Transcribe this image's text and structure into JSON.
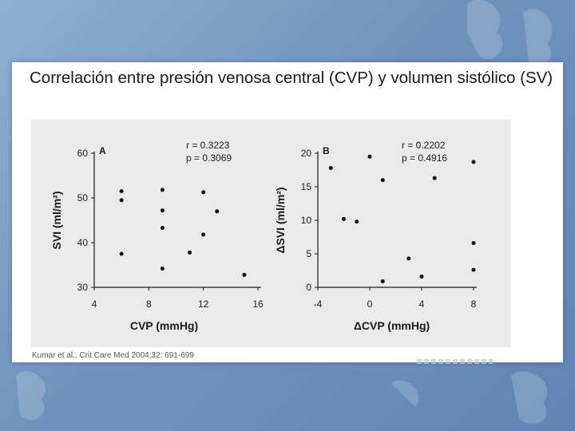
{
  "slide": {
    "title": "Correlación entre presión venosa central (CVP) y volumen sistólico (SV)",
    "citation": "Kumar et al., Crit Care Med 2004;32: 691-699"
  },
  "colors": {
    "background": "#6f93bd",
    "panel": "#eaeaea",
    "points": "#111111"
  },
  "chart_data": [
    {
      "type": "scatter",
      "panel": "A",
      "xlabel": "CVP (mmHg)",
      "ylabel": "SVI (ml/m²)",
      "xlim": [
        4,
        16
      ],
      "ylim": [
        30,
        60
      ],
      "xticks": [
        4,
        8,
        12,
        16
      ],
      "yticks": [
        30,
        40,
        50,
        60
      ],
      "annotations": [
        "r = 0.3223",
        "p = 0.3069"
      ],
      "points": [
        [
          6,
          51.5
        ],
        [
          6,
          49.5
        ],
        [
          6,
          37.5
        ],
        [
          9,
          51.8
        ],
        [
          9,
          47.2
        ],
        [
          9,
          43.3
        ],
        [
          9,
          34.2
        ],
        [
          11,
          37.8
        ],
        [
          12,
          51.3
        ],
        [
          12,
          41.8
        ],
        [
          13,
          47.0
        ],
        [
          15,
          32.8
        ]
      ]
    },
    {
      "type": "scatter",
      "panel": "B",
      "xlabel": "ΔCVP (mmHg)",
      "ylabel": "ΔSVI (ml/m²)",
      "xlim": [
        -4,
        8
      ],
      "ylim": [
        0,
        20
      ],
      "xticks": [
        -4,
        0,
        4,
        8
      ],
      "yticks": [
        0,
        5,
        10,
        15,
        20
      ],
      "annotations": [
        "r = 0.2202",
        "p = 0.4916"
      ],
      "points": [
        [
          -3,
          17.8
        ],
        [
          -2,
          10.2
        ],
        [
          -1,
          9.8
        ],
        [
          0,
          19.5
        ],
        [
          1,
          16.0
        ],
        [
          1,
          0.9
        ],
        [
          3,
          4.3
        ],
        [
          4,
          1.6
        ],
        [
          5,
          16.3
        ],
        [
          8,
          18.7
        ],
        [
          8,
          6.6
        ],
        [
          8,
          2.6
        ]
      ]
    }
  ]
}
